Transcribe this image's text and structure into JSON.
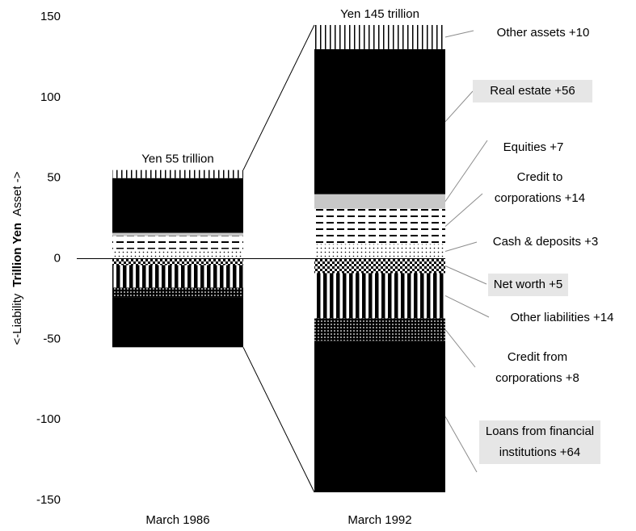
{
  "chart_data": {
    "type": "stacked-bar",
    "y_label": [
      "<-Liability",
      "Trillion Yen",
      "Asset ->"
    ],
    "categories": [
      "March 1986",
      "March 1992"
    ],
    "total_labels": [
      "Yen 55 trillion",
      "Yen 145 trillion"
    ],
    "ylim": [
      -150,
      150
    ],
    "yticks": [
      -150,
      -100,
      -50,
      0,
      50,
      100,
      150
    ],
    "series": [
      {
        "name": "Cash & deposits +3",
        "color": "#000000",
        "pattern": "dots",
        "values": [
          6,
          9
        ]
      },
      {
        "name": "Credit to corporations +14",
        "color": "#000000",
        "pattern": "dashes",
        "values": [
          8,
          22
        ]
      },
      {
        "name": "Equities +7",
        "color": "#c8c8c8",
        "pattern": "solid",
        "values": [
          2,
          9
        ]
      },
      {
        "name": "Real estate +56",
        "color": "#000000",
        "pattern": "solid",
        "highlight": true,
        "values": [
          34,
          90
        ]
      },
      {
        "name": "Other assets +10",
        "color": "#000000",
        "pattern": "vlines",
        "values": [
          5,
          15
        ]
      },
      {
        "name": "Net worth +5",
        "color": "#000000",
        "pattern": "checker",
        "highlight": true,
        "values": [
          -4,
          -9
        ]
      },
      {
        "name": "Other liabilities +14",
        "color": "#000000",
        "pattern": "stripes",
        "values": [
          -14,
          -28
        ]
      },
      {
        "name": "Credit from corporations +8",
        "color": "#000000",
        "pattern": "dense-dots",
        "values": [
          -6,
          -14
        ]
      },
      {
        "name": "Loans from financial institutions +64",
        "color": "#000000",
        "pattern": "solid",
        "highlight": true,
        "values": [
          -31,
          -94
        ]
      }
    ]
  }
}
